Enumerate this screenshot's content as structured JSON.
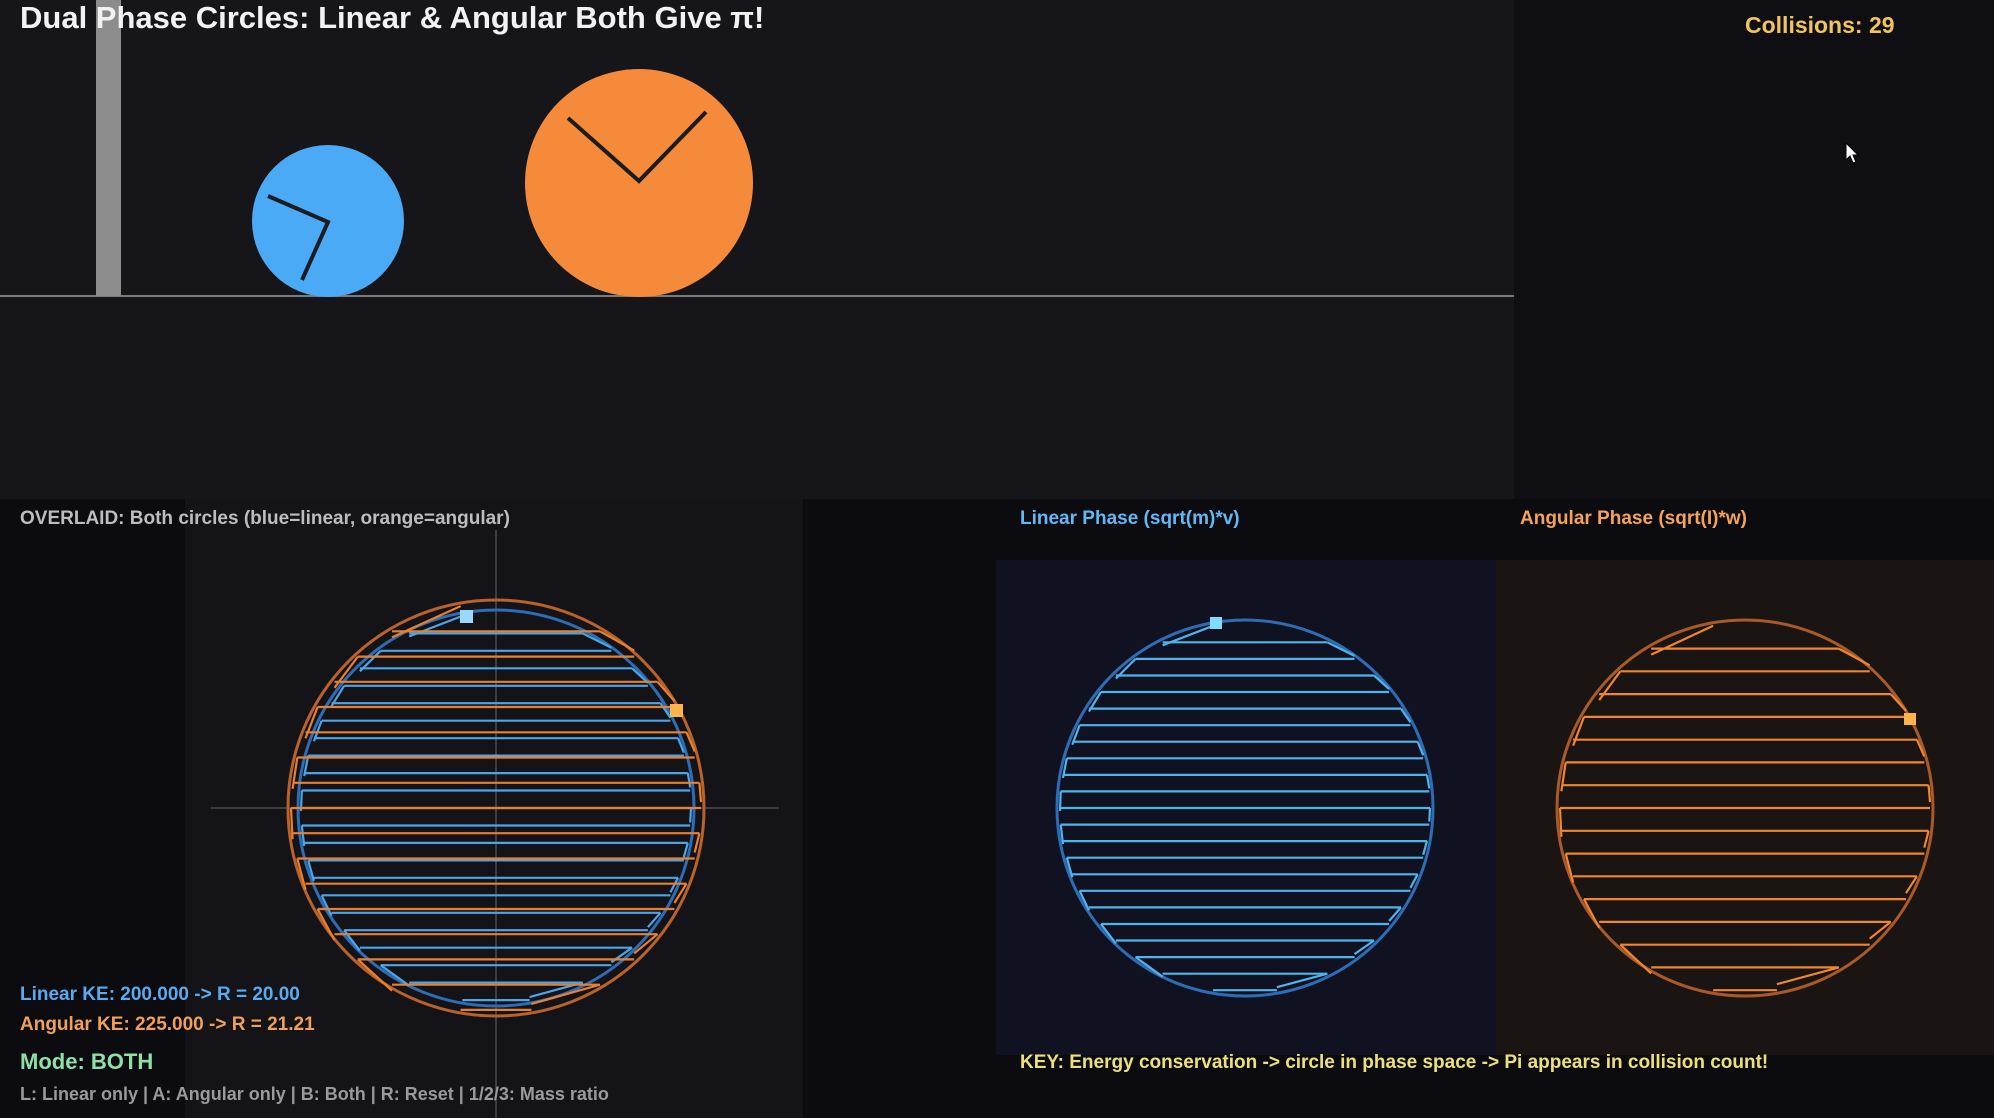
{
  "title": "Dual Phase Circles: Linear & Angular Both Give π!",
  "collisions_label": "Collisions: 29",
  "collision_count": 29,
  "panels": {
    "overlay_label": "OVERLAID: Both circles (blue=linear, orange=angular)",
    "linear_label": "Linear Phase (sqrt(m)*v)",
    "angular_label": "Angular Phase (sqrt(I)*w)"
  },
  "energy": {
    "linear_text": "Linear KE: 200.000 -> R = 20.00",
    "angular_text": "Angular KE: 225.000 -> R = 21.21",
    "linear_ke": 200.0,
    "linear_radius": 20.0,
    "angular_ke": 225.0,
    "angular_radius": 21.21
  },
  "mode_text": "Mode: BOTH",
  "controls_text": "L: Linear only | A: Angular only | B: Both | R: Reset | 1/2/3: Mass ratio",
  "key_text": "KEY: Energy conservation -> circle in phase space -> Pi appears in collision count!",
  "colors": {
    "linear": "#4aaaf5",
    "angular": "#f58a3a",
    "wall": "#8c8c8c",
    "title": "#f2f2f2",
    "counter": "#f2c45c",
    "mode": "#8fe0a8",
    "key": "#ece07a"
  },
  "icons": [
    "cursor-icon"
  ]
}
